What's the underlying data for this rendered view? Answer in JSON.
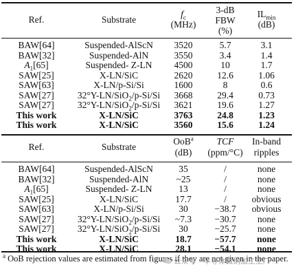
{
  "table1": {
    "headers": {
      "ref": "Ref.",
      "substrate": "Substrate",
      "fc_symbol": "f",
      "fc_sub": "c",
      "fc_unit": "(MHz)",
      "fbw_line1": "3-dB",
      "fbw_line2": "FBW",
      "fbw_unit": "(%)",
      "il_symbol": "IL",
      "il_sub": "min",
      "il_unit": "(dB)"
    },
    "rows": [
      {
        "ref": "BAW[64]",
        "substrate": "Suspended-AlScN",
        "fc": "3520",
        "fbw": "5.7",
        "il": "3.1",
        "bold": false
      },
      {
        "ref": "BAW[32]",
        "substrate": "Suspended-AlN",
        "fc": "3550",
        "fbw": "3.4",
        "il": "1.4",
        "bold": false
      },
      {
        "ref": "A",
        "ref_sub": "1",
        "ref_suffix": "[65]",
        "substrate": "Suspended- Z-LN",
        "fc": "4500",
        "fbw": "10",
        "il": "1.7",
        "bold": false
      },
      {
        "ref": "SAW[25]",
        "substrate": "X-LN/SiC",
        "fc": "2620",
        "fbw": "12.6",
        "il": "1.06",
        "bold": false
      },
      {
        "ref": "SAW[63]",
        "substrate": "X-LN/p-Si/Si",
        "fc": "1600",
        "fbw": "8",
        "il": "0.6",
        "bold": false
      },
      {
        "ref": "SAW[27]",
        "substrate": "32°Y-LN/SiO",
        "substrate_sub": "2",
        "substrate_suffix": "/p-Si/Si",
        "fc": "3668",
        "fbw": "29.4",
        "il": "0.73",
        "bold": false
      },
      {
        "ref": "SAW[27]",
        "substrate": "32°Y-LN/SiO",
        "substrate_sub": "2",
        "substrate_suffix": "/p-Si/Si",
        "fc": "3621",
        "fbw": "19.6",
        "il": "1.27",
        "bold": false
      },
      {
        "ref": "This work",
        "substrate": "X-LN/SiC",
        "fc": "3763",
        "fbw": "24.8",
        "il": "1.23",
        "bold": true
      },
      {
        "ref": "This work",
        "substrate": "X-LN/SiC",
        "fc": "3560",
        "fbw": "15.6",
        "il": "1.24",
        "bold": true
      }
    ]
  },
  "table2": {
    "headers": {
      "ref": "Ref.",
      "substrate": "Substrate",
      "oob": "OoB",
      "oob_sup": "a",
      "oob_unit": "(dB)",
      "tcf": "TCF",
      "tcf_unit": "(ppm/°C)",
      "ripple_line1": "In-band",
      "ripple_line2": "ripples"
    },
    "rows": [
      {
        "ref": "BAW[64]",
        "substrate": "Suspended-AlScN",
        "oob": "35",
        "tcf": "/",
        "ripples": "none",
        "bold": false
      },
      {
        "ref": "BAW[32]",
        "substrate": "Suspended-AlN",
        "oob": "~25",
        "tcf": "/",
        "ripples": "none",
        "bold": false
      },
      {
        "ref": "A",
        "ref_sub": "1",
        "ref_suffix": "[65]",
        "substrate": "Suspended- Z-LN",
        "oob": "13",
        "tcf": "/",
        "ripples": "none",
        "bold": false
      },
      {
        "ref": "SAW[25]",
        "substrate": "X-LN/SiC",
        "oob": "17.7",
        "tcf": "/",
        "ripples": "obvious",
        "bold": false
      },
      {
        "ref": "SAW[63]",
        "substrate": "X-LN/p-Si/Si",
        "oob": "30",
        "tcf": "−38.7",
        "ripples": "obvious",
        "bold": false
      },
      {
        "ref": "SAW[27]",
        "substrate": "32°Y-LN/SiO",
        "substrate_sub": "2",
        "substrate_suffix": "/p-Si/Si",
        "oob": "~7.3",
        "tcf": "−30.7",
        "ripples": "none",
        "bold": false
      },
      {
        "ref": "SAW[27]",
        "substrate": "32°Y-LN/SiO",
        "substrate_sub": "2",
        "substrate_suffix": "/p-Si/Si",
        "oob": "30",
        "tcf": "−25.7",
        "ripples": "none",
        "bold": false
      },
      {
        "ref": "This work",
        "substrate": "X-LN/SiC",
        "oob": "18.7",
        "tcf": "−57.7",
        "ripples": "none",
        "bold": true
      },
      {
        "ref": "This work",
        "substrate": "X-LN/SiC",
        "oob": "28.1",
        "tcf": "−54.1",
        "ripples": "none",
        "bold": true
      }
    ]
  },
  "footnote": {
    "sup": "a",
    "text": " OoB rejection values are estimated from figures if they are not given in the paper."
  },
  "watermark": {
    "text": "公众号 · 半导体微纳加工工厂",
    "icon": "wechat-logo-icon",
    "color": "#9a9a9a"
  }
}
